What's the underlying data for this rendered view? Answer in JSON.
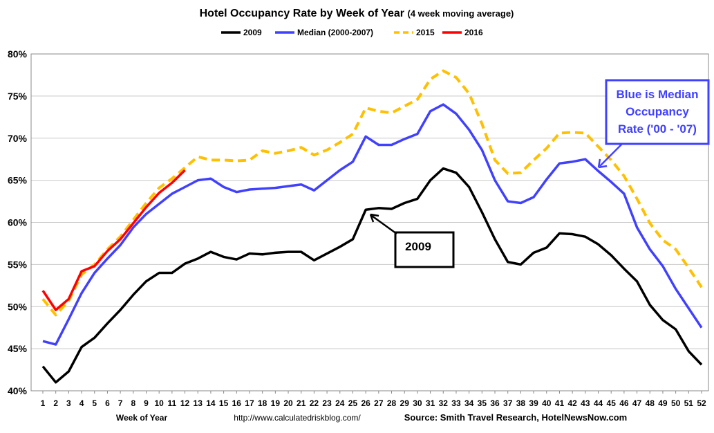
{
  "chart_data": {
    "type": "line",
    "title": "Hotel Occupancy Rate by  Week of Year",
    "subtitle": "(4 week moving average)",
    "x_label": "Week of Year",
    "url": "http://www.calculatedriskblog.com/",
    "source": "Source: Smith Travel Research, HotelNewsNow.com",
    "categories": [
      "1",
      "2",
      "3",
      "4",
      "5",
      "6",
      "7",
      "8",
      "9",
      "10",
      "11",
      "12",
      "13",
      "14",
      "15",
      "16",
      "17",
      "18",
      "19",
      "20",
      "21",
      "22",
      "23",
      "24",
      "25",
      "26",
      "27",
      "28",
      "29",
      "30",
      "31",
      "32",
      "33",
      "34",
      "35",
      "36",
      "37",
      "38",
      "39",
      "40",
      "41",
      "42",
      "43",
      "44",
      "45",
      "46",
      "47",
      "48",
      "49",
      "50",
      "51",
      "52"
    ],
    "ylim": [
      40,
      80
    ],
    "yticks": [
      {
        "value": 40,
        "label": "40%"
      },
      {
        "value": 45,
        "label": "45%"
      },
      {
        "value": 50,
        "label": "50%"
      },
      {
        "value": 55,
        "label": "55%"
      },
      {
        "value": 60,
        "label": "60%"
      },
      {
        "value": 65,
        "label": "65%"
      },
      {
        "value": 70,
        "label": "70%"
      },
      {
        "value": 75,
        "label": "75%"
      },
      {
        "value": 80,
        "label": "80%"
      }
    ],
    "grid": true,
    "legend": "top",
    "series": [
      {
        "name": "2009",
        "color": "#000000",
        "style": "solid",
        "values": [
          42.9,
          41.0,
          42.3,
          45.2,
          46.3,
          48.0,
          49.6,
          51.4,
          53.0,
          54.0,
          54.0,
          55.1,
          55.7,
          56.5,
          55.9,
          55.6,
          56.3,
          56.2,
          56.4,
          56.5,
          56.5,
          55.5,
          56.3,
          57.1,
          58.0,
          61.5,
          61.7,
          61.6,
          62.3,
          62.8,
          65.0,
          66.4,
          65.9,
          64.2,
          61.2,
          58.0,
          55.3,
          55.0,
          56.4,
          57.0,
          58.7,
          58.6,
          58.3,
          57.4,
          56.1,
          54.5,
          53.0,
          50.2,
          48.4,
          47.3,
          44.7,
          43.1
        ]
      },
      {
        "name": "Median (2000-2007)",
        "color": "#4040ff",
        "style": "solid",
        "values": [
          45.9,
          45.5,
          48.5,
          51.6,
          54.0,
          55.7,
          57.3,
          59.4,
          61.0,
          62.2,
          63.4,
          64.2,
          65.0,
          65.2,
          64.2,
          63.6,
          63.9,
          64.0,
          64.1,
          64.3,
          64.5,
          63.8,
          65.0,
          66.2,
          67.2,
          70.2,
          69.2,
          69.2,
          69.9,
          70.5,
          73.2,
          74.0,
          72.9,
          71.0,
          68.6,
          65.0,
          62.5,
          62.3,
          63.0,
          65.1,
          67.0,
          67.2,
          67.5,
          66.1,
          64.8,
          63.4,
          59.4,
          56.8,
          54.8,
          52.1,
          49.8,
          47.5
        ]
      },
      {
        "name": "2015",
        "color": "#ffc000",
        "style": "dashed",
        "values": [
          50.9,
          49.0,
          50.7,
          53.8,
          55.0,
          56.8,
          58.3,
          60.3,
          62.3,
          64.1,
          65.2,
          66.5,
          67.8,
          67.4,
          67.4,
          67.3,
          67.4,
          68.5,
          68.2,
          68.5,
          68.9,
          68.0,
          68.6,
          69.5,
          70.5,
          73.6,
          73.2,
          73.0,
          73.8,
          74.6,
          77.0,
          78.0,
          77.2,
          75.3,
          71.7,
          67.4,
          65.8,
          65.9,
          67.4,
          68.8,
          70.6,
          70.7,
          70.6,
          69.0,
          67.4,
          65.5,
          62.8,
          59.9,
          57.9,
          56.8,
          54.6,
          52.3
        ]
      },
      {
        "name": "2016",
        "color": "#ff0000",
        "style": "solid",
        "values": [
          51.9,
          49.6,
          50.9,
          54.2,
          54.8,
          56.6,
          58.0,
          59.9,
          61.8,
          63.5,
          64.7,
          66.2,
          null,
          null,
          null,
          null,
          null,
          null,
          null,
          null,
          null,
          null,
          null,
          null,
          null,
          null,
          null,
          null,
          null,
          null,
          null,
          null,
          null,
          null,
          null,
          null,
          null,
          null,
          null,
          null,
          null,
          null,
          null,
          null,
          null,
          null,
          null,
          null,
          null,
          null,
          null,
          null
        ]
      }
    ],
    "annotations": [
      {
        "lines": [
          "Blue is Median",
          "Occupancy",
          "Rate ('00 - '07)"
        ],
        "color": "#4040ff"
      },
      {
        "lines": [
          "2009"
        ],
        "color": "#000000"
      }
    ]
  }
}
